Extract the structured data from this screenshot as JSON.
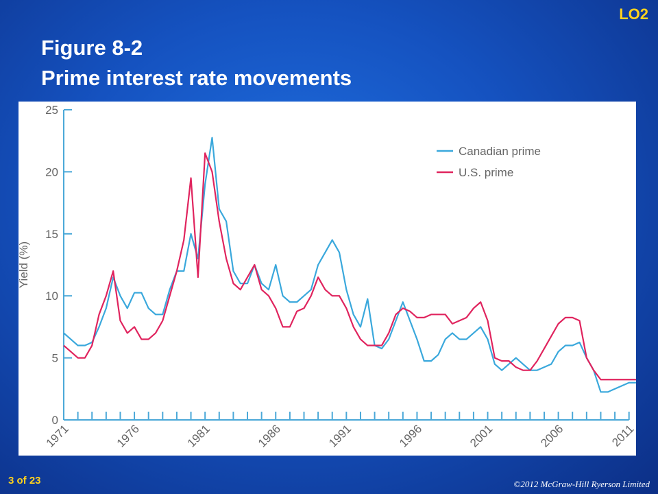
{
  "slide": {
    "tag": "LO2",
    "title_line1": "Figure 8-2",
    "title_line2": "Prime interest rate movements",
    "page": "3 of 23",
    "copyright": "©2012 McGraw-Hill Ryerson Limited"
  },
  "chart_data": {
    "type": "line",
    "ylabel": "Yield (%)",
    "x": [
      1971,
      1971.5,
      1972,
      1972.5,
      1973,
      1973.5,
      1974,
      1974.5,
      1975,
      1975.5,
      1976,
      1976.5,
      1977,
      1977.5,
      1978,
      1978.5,
      1979,
      1979.5,
      1980,
      1980.5,
      1981,
      1981.5,
      1982,
      1982.5,
      1983,
      1983.5,
      1984,
      1984.5,
      1985,
      1985.5,
      1986,
      1986.5,
      1987,
      1987.5,
      1988,
      1988.5,
      1989,
      1989.5,
      1990,
      1990.5,
      1991,
      1991.5,
      1992,
      1992.5,
      1993,
      1993.5,
      1994,
      1994.5,
      1995,
      1995.5,
      1996,
      1996.5,
      1997,
      1997.5,
      1998,
      1998.5,
      1999,
      1999.5,
      2000,
      2000.5,
      2001,
      2001.5,
      2002,
      2002.5,
      2003,
      2003.5,
      2004,
      2004.5,
      2005,
      2005.5,
      2006,
      2006.5,
      2007,
      2007.5,
      2008,
      2008.5,
      2009,
      2009.5,
      2010,
      2010.5,
      2011,
      2011.5
    ],
    "series": [
      {
        "name": "Canadian prime",
        "color": "#3aa8dc",
        "values": [
          7,
          6.5,
          6,
          6,
          6.25,
          7.5,
          9,
          11.5,
          10,
          9,
          10.25,
          10.25,
          9,
          8.5,
          8.5,
          10.5,
          12,
          12,
          15,
          13,
          19,
          22.75,
          17,
          16,
          12,
          11,
          11,
          12.5,
          11,
          10.5,
          12.5,
          10,
          9.5,
          9.5,
          10,
          10.5,
          12.5,
          13.5,
          14.5,
          13.5,
          10.5,
          8.5,
          7.5,
          9.75,
          6,
          5.75,
          6.5,
          8,
          9.5,
          8,
          6.5,
          4.75,
          4.75,
          5.25,
          6.5,
          7,
          6.5,
          6.5,
          7,
          7.5,
          6.5,
          4.5,
          4,
          4.5,
          5,
          4.5,
          4,
          4,
          4.25,
          4.5,
          5.5,
          6,
          6,
          6.25,
          5,
          4,
          2.25,
          2.25,
          2.5,
          2.75,
          3,
          3
        ]
      },
      {
        "name": "U.S. prime",
        "color": "#e0245e",
        "values": [
          6,
          5.5,
          5,
          5,
          6,
          8.5,
          10,
          12,
          8,
          7,
          7.5,
          6.5,
          6.5,
          7,
          8,
          10,
          12,
          14.5,
          19.5,
          11.5,
          21.5,
          20,
          16,
          13,
          11,
          10.5,
          11.5,
          12.5,
          10.5,
          10,
          9,
          7.5,
          7.5,
          8.75,
          9,
          10,
          11.5,
          10.5,
          10,
          10,
          9,
          7.5,
          6.5,
          6,
          6,
          6,
          7,
          8.5,
          9,
          8.75,
          8.25,
          8.25,
          8.5,
          8.5,
          8.5,
          7.75,
          8,
          8.25,
          9,
          9.5,
          8,
          5,
          4.75,
          4.75,
          4.25,
          4,
          4,
          4.75,
          5.75,
          6.75,
          7.75,
          8.25,
          8.25,
          8,
          5,
          4,
          3.25,
          3.25,
          3.25,
          3.25,
          3.25,
          3.25
        ]
      }
    ],
    "xlim": [
      1971,
      2011.5
    ],
    "xticks": [
      1971,
      1976,
      1981,
      1986,
      1991,
      1996,
      2001,
      2006,
      2011
    ],
    "xminorticks": [
      1972,
      1973,
      1974,
      1975,
      1977,
      1978,
      1979,
      1980,
      1982,
      1983,
      1984,
      1985,
      1987,
      1988,
      1989,
      1990,
      1992,
      1993,
      1994,
      1995,
      1997,
      1998,
      1999,
      2000,
      2002,
      2003,
      2004,
      2005,
      2007,
      2008,
      2009,
      2010
    ],
    "ylim": [
      0,
      25
    ],
    "yticks": [
      0,
      5,
      10,
      15,
      20,
      25
    ],
    "grid": false,
    "legend": "upper right"
  }
}
